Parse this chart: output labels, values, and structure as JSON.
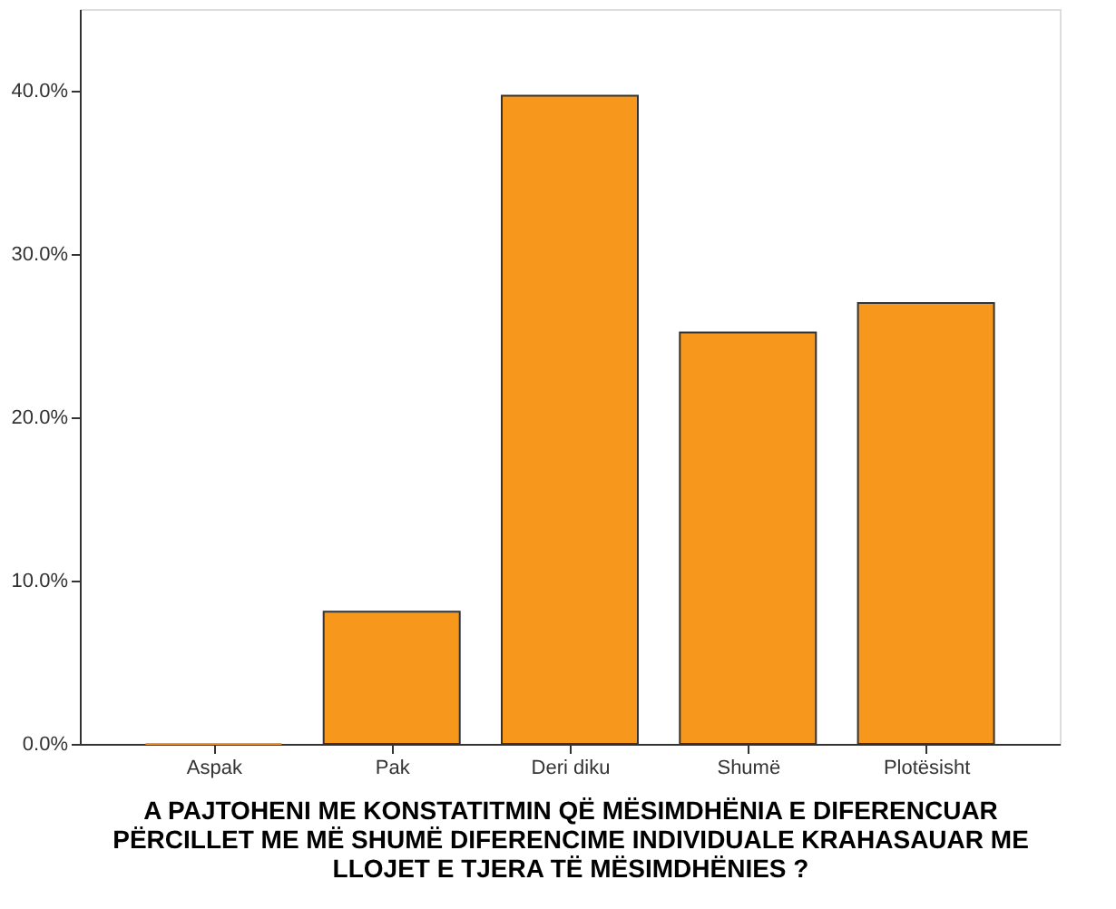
{
  "chart_data": {
    "type": "bar",
    "xlabel": "A PAJTOHENI ME KONSTATITMIN QË MËSIMDHËNIA E DIFERENCUAR\nPËRCILLET ME MË SHUMË DIFERENCIME INDIVIDUALE KRAHASAUAR ME\nLLOJET E TJERA TË MËSIMDHËNIES ?",
    "categories": [
      "Aspak",
      "Pak",
      "Deri diku",
      "Shumë",
      "Plotësisht"
    ],
    "values": [
      0,
      8.1,
      39.7,
      25.2,
      27.0
    ],
    "color": "#f7981d",
    "ylim": [
      0,
      45
    ],
    "yticks": [
      {
        "value": 0,
        "label": "0.0%"
      },
      {
        "value": 10,
        "label": "10.0%"
      },
      {
        "value": 20,
        "label": "20.0%"
      },
      {
        "value": 30,
        "label": "30.0%"
      },
      {
        "value": 40,
        "label": "40.0%"
      }
    ],
    "grid": false
  }
}
